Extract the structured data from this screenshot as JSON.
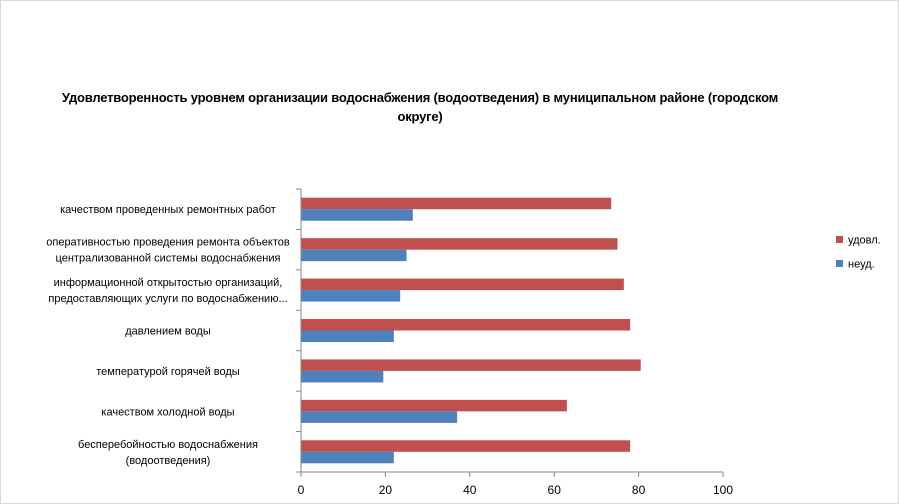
{
  "chart_data": {
    "type": "bar",
    "orientation": "horizontal",
    "title": "Удовлетворенность уровнем организации водоснабжения (водоотведения) в муниципальном районе (городском округе)",
    "categories": [
      [
        "качеством  проведенных  ремонтных работ"
      ],
      [
        "оперативностью  проведения  ремонта объектов",
        "централизованной системы водоснабжения"
      ],
      [
        "информационной открытостью организаций,",
        "предоставляющих услуги по водоснабжению..."
      ],
      [
        "давлением  воды"
      ],
      [
        "температурой горячей воды"
      ],
      [
        "качеством  холодной воды"
      ],
      [
        "бесперебойностью  водоснабжения",
        "(водоотведения)"
      ]
    ],
    "series": [
      {
        "name": "удовл.",
        "color": "#c0504d",
        "values": [
          73.5,
          75,
          76.5,
          78,
          80.5,
          63,
          78
        ]
      },
      {
        "name": "неуд.",
        "color": "#4f81bd",
        "values": [
          26.5,
          25,
          23.5,
          22,
          19.5,
          37,
          22
        ]
      }
    ],
    "xlim": [
      0,
      100
    ],
    "xticks": [
      "0",
      "20",
      "40",
      "60",
      "80",
      "100"
    ],
    "legend": "right"
  }
}
